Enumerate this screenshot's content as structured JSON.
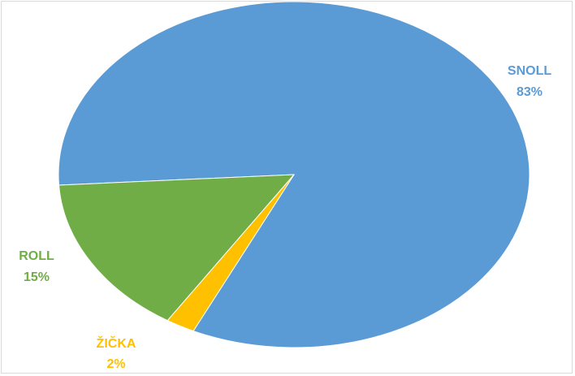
{
  "chart_data": {
    "type": "pie",
    "title": "",
    "slices": [
      {
        "label": "SNOLL",
        "value": 83,
        "value_label": "83%",
        "color": "#5b9bd5"
      },
      {
        "label": "ROLL",
        "value": 15,
        "value_label": "15%",
        "color": "#70ad47"
      },
      {
        "label": "ŽIČKA",
        "value": 2,
        "value_label": "2%",
        "color": "#ffc000"
      }
    ],
    "legend": "none",
    "data_labels": "outside, category and percentage"
  }
}
